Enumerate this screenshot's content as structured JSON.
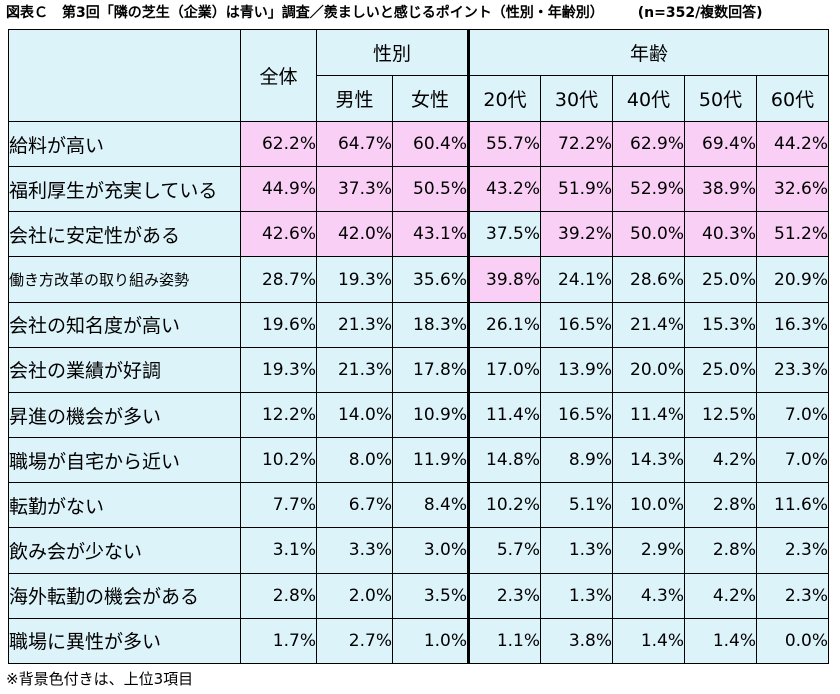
{
  "title": "図表Ｃ　第3回「隣の芝生（企業）は青い」調査／羨ましいと感じるポイント（性別・年齢別）",
  "sample_note": "(n=352/複数回答)",
  "footnote": "※背景色付きは、上位3項目",
  "header": {
    "total": "全体",
    "gender_group": "性別",
    "age_group": "年齢",
    "male": "男性",
    "female": "女性",
    "age_20": "20代",
    "age_30": "30代",
    "age_40": "40代",
    "age_50": "50代",
    "age_60": "60代"
  },
  "colors": {
    "header_bg": "#ddf3fa",
    "highlight_bg": "#f9cff5"
  },
  "chart_data": {
    "type": "table",
    "columns": [
      "全体",
      "男性",
      "女性",
      "20代",
      "30代",
      "40代",
      "50代",
      "60代"
    ],
    "rows": [
      {
        "label": "給料が高い",
        "values": [
          "62.2%",
          "64.7%",
          "60.4%",
          "55.7%",
          "72.2%",
          "62.9%",
          "69.4%",
          "44.2%"
        ],
        "highlight": [
          true,
          true,
          true,
          true,
          true,
          true,
          true,
          true
        ]
      },
      {
        "label": "福利厚生が充実している",
        "values": [
          "44.9%",
          "37.3%",
          "50.5%",
          "43.2%",
          "51.9%",
          "52.9%",
          "38.9%",
          "32.6%"
        ],
        "highlight": [
          true,
          true,
          true,
          true,
          true,
          true,
          true,
          true
        ]
      },
      {
        "label": "会社に安定性がある",
        "values": [
          "42.6%",
          "42.0%",
          "43.1%",
          "37.5%",
          "39.2%",
          "50.0%",
          "40.3%",
          "51.2%"
        ],
        "highlight": [
          true,
          true,
          true,
          false,
          true,
          true,
          true,
          true
        ]
      },
      {
        "label": "働き方改革の取り組み姿勢",
        "values": [
          "28.7%",
          "19.3%",
          "35.6%",
          "39.8%",
          "24.1%",
          "28.6%",
          "25.0%",
          "20.9%"
        ],
        "highlight": [
          false,
          false,
          false,
          true,
          false,
          false,
          false,
          false
        ]
      },
      {
        "label": "会社の知名度が高い",
        "values": [
          "19.6%",
          "21.3%",
          "18.3%",
          "26.1%",
          "16.5%",
          "21.4%",
          "15.3%",
          "16.3%"
        ],
        "highlight": [
          false,
          false,
          false,
          false,
          false,
          false,
          false,
          false
        ]
      },
      {
        "label": "会社の業績が好調",
        "values": [
          "19.3%",
          "21.3%",
          "17.8%",
          "17.0%",
          "13.9%",
          "20.0%",
          "25.0%",
          "23.3%"
        ],
        "highlight": [
          false,
          false,
          false,
          false,
          false,
          false,
          false,
          false
        ]
      },
      {
        "label": "昇進の機会が多い",
        "values": [
          "12.2%",
          "14.0%",
          "10.9%",
          "11.4%",
          "16.5%",
          "11.4%",
          "12.5%",
          "7.0%"
        ],
        "highlight": [
          false,
          false,
          false,
          false,
          false,
          false,
          false,
          false
        ]
      },
      {
        "label": "職場が自宅から近い",
        "values": [
          "10.2%",
          "8.0%",
          "11.9%",
          "14.8%",
          "8.9%",
          "14.3%",
          "4.2%",
          "7.0%"
        ],
        "highlight": [
          false,
          false,
          false,
          false,
          false,
          false,
          false,
          false
        ]
      },
      {
        "label": "転勤がない",
        "values": [
          "7.7%",
          "6.7%",
          "8.4%",
          "10.2%",
          "5.1%",
          "10.0%",
          "2.8%",
          "11.6%"
        ],
        "highlight": [
          false,
          false,
          false,
          false,
          false,
          false,
          false,
          false
        ]
      },
      {
        "label": "飲み会が少ない",
        "values": [
          "3.1%",
          "3.3%",
          "3.0%",
          "5.7%",
          "1.3%",
          "2.9%",
          "2.8%",
          "2.3%"
        ],
        "highlight": [
          false,
          false,
          false,
          false,
          false,
          false,
          false,
          false
        ]
      },
      {
        "label": "海外転勤の機会がある",
        "values": [
          "2.8%",
          "2.0%",
          "3.5%",
          "2.3%",
          "1.3%",
          "4.3%",
          "4.2%",
          "2.3%"
        ],
        "highlight": [
          false,
          false,
          false,
          false,
          false,
          false,
          false,
          false
        ]
      },
      {
        "label": "職場に異性が多い",
        "values": [
          "1.7%",
          "2.7%",
          "1.0%",
          "1.1%",
          "3.8%",
          "1.4%",
          "1.4%",
          "0.0%"
        ],
        "highlight": [
          false,
          false,
          false,
          false,
          false,
          false,
          false,
          false
        ]
      }
    ]
  }
}
